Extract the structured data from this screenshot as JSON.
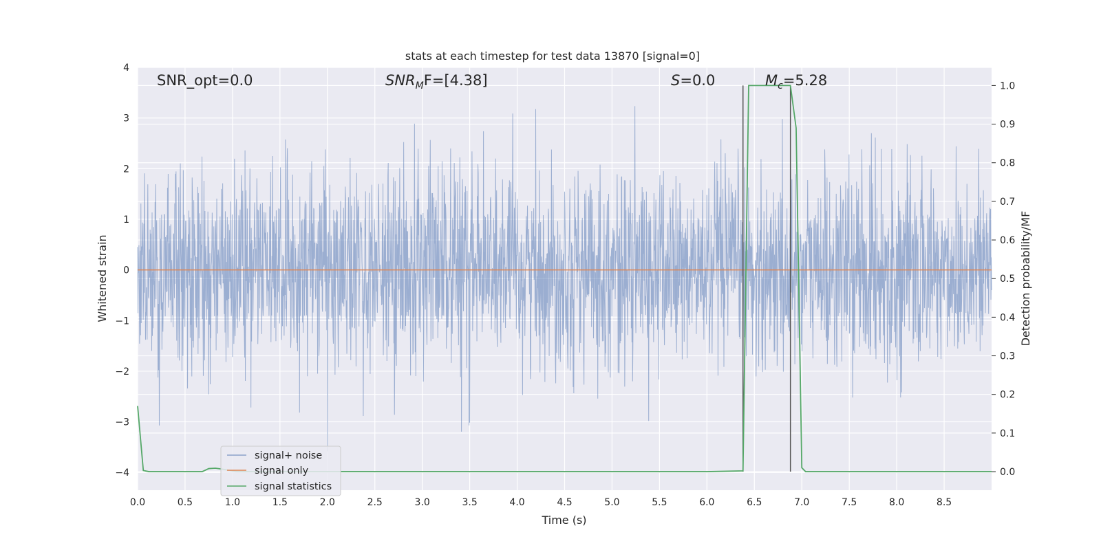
{
  "chart_data": {
    "type": "line",
    "title": "stats at each timestep for test data 13870 [signal=0]",
    "xlabel": "Time (s)",
    "ylabel": "Whitened strain",
    "ylabel_right": "Detection probability/MF",
    "xlim": [
      0,
      9
    ],
    "ylim": [
      -4.35,
      4
    ],
    "ylim_right": [
      -0.048,
      1.047
    ],
    "x_ticks": [
      "0.0",
      "0.5",
      "1.0",
      "1.5",
      "2.0",
      "2.5",
      "3.0",
      "3.5",
      "4.0",
      "4.5",
      "5.0",
      "5.5",
      "6.0",
      "6.5",
      "7.0",
      "7.5",
      "8.0",
      "8.5"
    ],
    "y_ticks": [
      "−4",
      "−3",
      "−2",
      "−1",
      "0",
      "1",
      "2",
      "3",
      "4"
    ],
    "y_ticks_right": [
      "0.0",
      "0.1",
      "0.2",
      "0.3",
      "0.4",
      "0.5",
      "0.6",
      "0.7",
      "0.8",
      "0.9",
      "1.0"
    ],
    "grid": true,
    "legend_position": "lower-left",
    "annotations": {
      "snr_opt": "SNR_opt=0.0",
      "snr_mf_main": "SNR",
      "snr_mf_sub": "M",
      "snr_mf_rest": "F=[4.38]",
      "s_main": "S",
      "s_rest": "=0.0",
      "mc_main": "M",
      "mc_sub": "c",
      "mc_rest": "=5.28"
    },
    "series": [
      {
        "name": "signal+ noise",
        "color": "#4c72b0",
        "description_type": "noise",
        "band_min": -2.0,
        "band_max": 2.0,
        "peak_max": 3.6,
        "peak_min": -3.7
      },
      {
        "name": "signal only",
        "color": "#dd8452",
        "x": [
          0,
          9
        ],
        "y": [
          0,
          0
        ]
      },
      {
        "name": "signal statistics",
        "color": "#55a868",
        "axis": "right",
        "x": [
          0,
          0.06,
          0.12,
          0.3,
          0.5,
          0.68,
          0.75,
          0.82,
          0.88,
          0.95,
          1.05,
          1.5,
          2.0,
          3.0,
          4.0,
          5.0,
          6.0,
          6.38,
          6.44,
          6.5,
          6.6,
          6.7,
          6.8,
          6.88,
          6.94,
          7.0,
          7.04,
          7.1,
          7.5,
          8.0,
          8.5,
          9.0
        ],
        "y": [
          0.17,
          0.003,
          0.0,
          0.0,
          0.0,
          0.0,
          0.008,
          0.009,
          0.007,
          0.004,
          0.0,
          0.0,
          0.0,
          0.0,
          0.0,
          0.0,
          0.0,
          0.002,
          1.0,
          1.0,
          1.0,
          1.0,
          1.0,
          1.0,
          0.89,
          0.01,
          0.0,
          0.0,
          0.0,
          0.0,
          0.0,
          0.0
        ]
      }
    ],
    "vlines": [
      {
        "x": 6.38,
        "color": "#555555"
      },
      {
        "x": 6.88,
        "color": "#555555"
      }
    ]
  }
}
